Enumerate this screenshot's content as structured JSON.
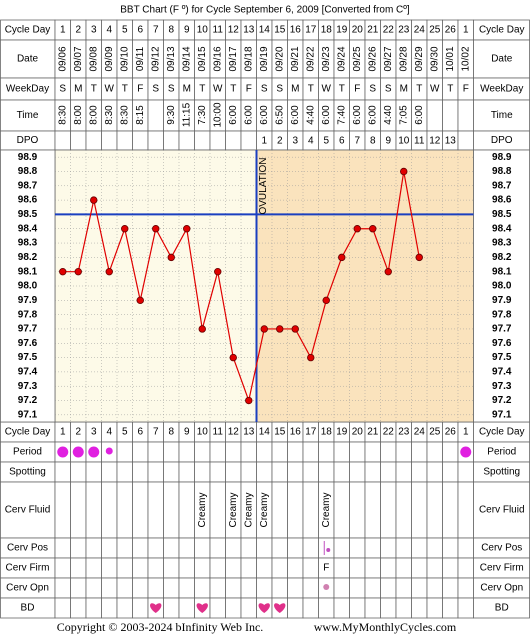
{
  "chart_data": {
    "type": "line",
    "title": "BBT Chart (F º) for Cycle September 6, 2009  [Converted from Cº]",
    "row_labels": [
      "Cycle Day",
      "Date",
      "WeekDay",
      "Time",
      "DPO",
      "Cycle Day",
      "Period",
      "Spotting",
      "Cerv Fluid",
      "Cerv Pos",
      "Cerv Firm",
      "Cerv Opn",
      "BD"
    ],
    "categories": [
      1,
      2,
      3,
      4,
      5,
      6,
      7,
      8,
      9,
      10,
      11,
      12,
      13,
      14,
      15,
      16,
      17,
      18,
      19,
      20,
      21,
      22,
      23,
      24,
      25,
      26,
      1
    ],
    "dates": [
      "09/06",
      "09/07",
      "09/08",
      "09/09",
      "09/10",
      "09/11",
      "09/12",
      "09/13",
      "09/14",
      "09/15",
      "09/16",
      "09/17",
      "09/18",
      "09/19",
      "09/20",
      "09/21",
      "09/22",
      "09/23",
      "09/24",
      "09/25",
      "09/26",
      "09/27",
      "09/28",
      "09/29",
      "09/30",
      "10/01",
      "10/02"
    ],
    "weekdays": [
      "S",
      "M",
      "T",
      "W",
      "T",
      "F",
      "S",
      "S",
      "M",
      "T",
      "W",
      "T",
      "F",
      "S",
      "S",
      "M",
      "T",
      "W",
      "T",
      "F",
      "S",
      "S",
      "M",
      "T",
      "W",
      "T",
      "F"
    ],
    "times": [
      "8:30",
      "8:00",
      "8:00",
      "8:30",
      "8:30",
      "8:15",
      null,
      "9:30",
      "11:15",
      "7:30",
      "10:00",
      "6:00",
      "6:00",
      "6:00",
      "6:50",
      "6:00",
      "4:40",
      "6:00",
      "7:40",
      "6:00",
      "6:00",
      "4:40",
      "7:05",
      "6:00",
      null,
      null,
      null
    ],
    "dpo": [
      null,
      null,
      null,
      null,
      null,
      null,
      null,
      null,
      null,
      null,
      null,
      null,
      null,
      1,
      2,
      3,
      4,
      5,
      6,
      7,
      8,
      9,
      10,
      11,
      12,
      13,
      null
    ],
    "values": [
      98.1,
      98.1,
      98.6,
      98.1,
      98.4,
      97.9,
      98.4,
      98.2,
      98.4,
      97.7,
      98.1,
      97.5,
      97.2,
      97.7,
      97.7,
      97.7,
      97.5,
      97.9,
      98.2,
      98.4,
      98.4,
      98.1,
      98.8,
      98.2,
      null,
      null,
      null
    ],
    "color": "#e00000",
    "ylim": [
      97.05,
      98.95
    ],
    "yticks": [
      97.1,
      97.2,
      97.3,
      97.4,
      97.5,
      97.6,
      97.7,
      97.8,
      97.9,
      {
        "value": 98,
        "label": "98.0"
      },
      98.1,
      98.2,
      98.3,
      98.4,
      98.5,
      98.6,
      98.7,
      98.8,
      98.9
    ],
    "grid": true,
    "coverline": 98.5,
    "ovulation_label": "OVULATION",
    "cerv_fluid": [
      null,
      null,
      null,
      null,
      null,
      null,
      null,
      null,
      null,
      "Creamy",
      null,
      "Creamy",
      "Creamy",
      "Creamy",
      null,
      null,
      null,
      "Creamy",
      null,
      null,
      null,
      null,
      null,
      null,
      null,
      null,
      null
    ],
    "cerv_firm": [
      null,
      null,
      null,
      null,
      null,
      null,
      null,
      null,
      null,
      null,
      null,
      null,
      null,
      null,
      null,
      null,
      null,
      "F",
      null,
      null,
      null,
      null,
      null,
      null,
      null,
      null,
      null
    ],
    "copyright": "Copyright © 2003-2024 bInfinity Web Inc.",
    "website": "www.MyMonthlyCycles.com"
  }
}
